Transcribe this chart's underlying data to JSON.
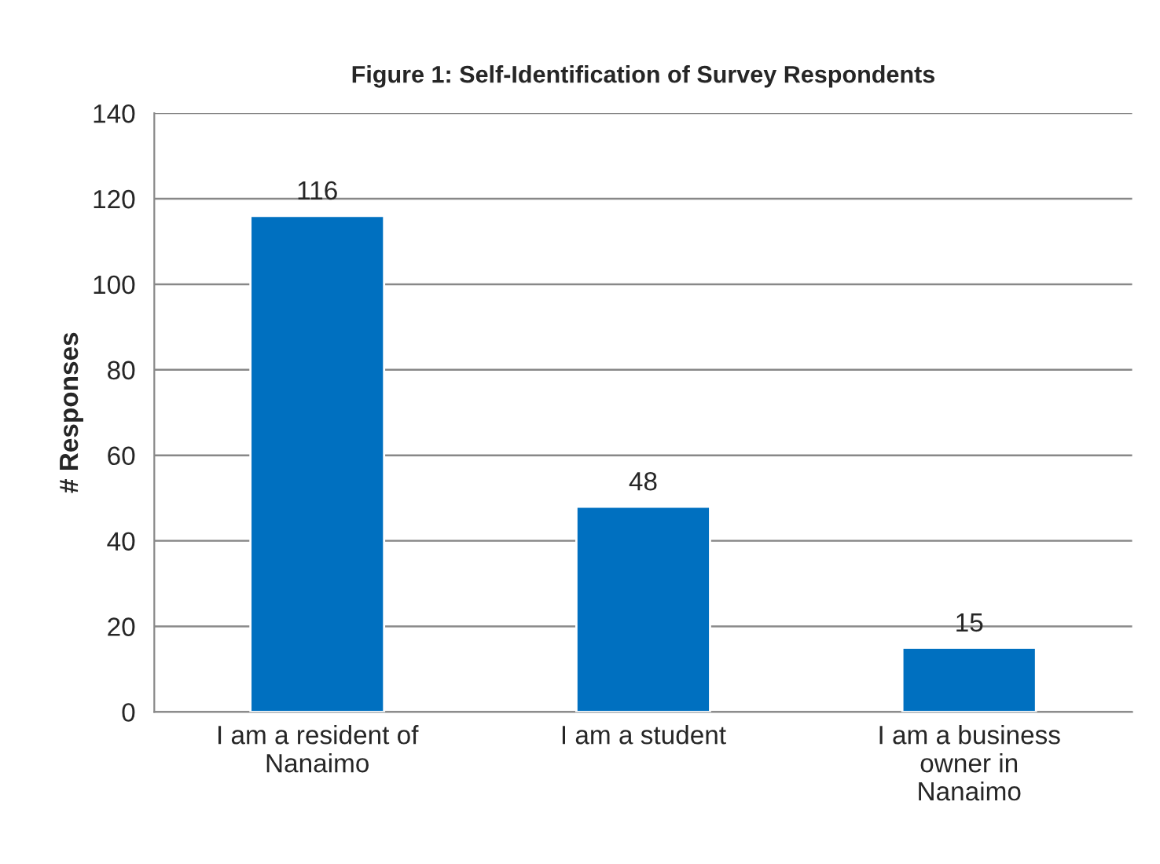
{
  "chart_data": {
    "type": "bar",
    "title": "Figure 1: Self-Identification of Survey Respondents",
    "ylabel": "# Responses",
    "categories": [
      "I am a resident of\nNanaimo",
      "I am a student",
      "I am a business\nowner in\nNanaimo"
    ],
    "values": [
      116,
      48,
      15
    ],
    "color": "#0070c0",
    "ylim": [
      0,
      140
    ],
    "yticks": [
      0,
      20,
      40,
      60,
      80,
      100,
      120,
      140
    ],
    "grid": "y",
    "data_labels": true
  }
}
